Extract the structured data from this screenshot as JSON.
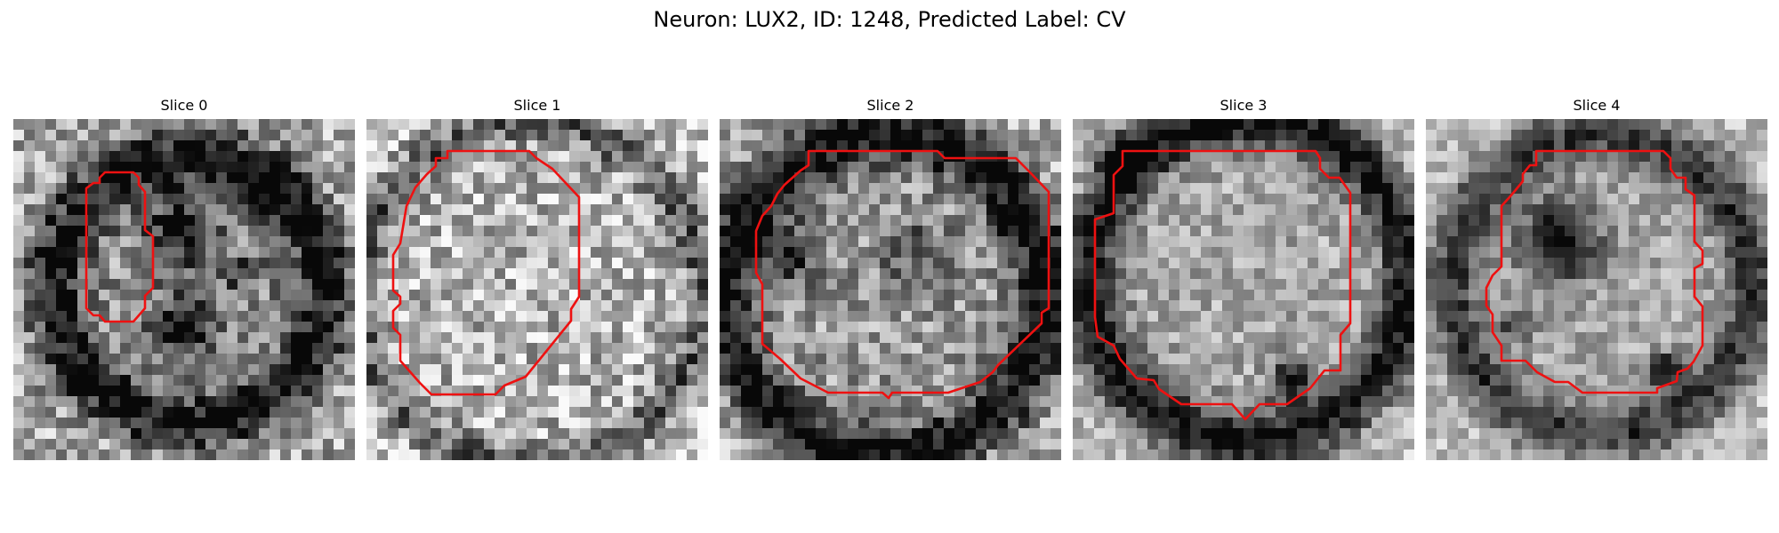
{
  "figure": {
    "title": "Neuron: LUX2, ID: 1248, Predicted Label: CV"
  },
  "colors": {
    "contour": "#ee1111",
    "background": "#ffffff"
  },
  "colormap": "gray",
  "panels": [
    {
      "title": "Slice 0"
    },
    {
      "title": "Slice 1"
    },
    {
      "title": "Slice 2"
    },
    {
      "title": "Slice 3"
    },
    {
      "title": "Slice 4"
    }
  ]
}
